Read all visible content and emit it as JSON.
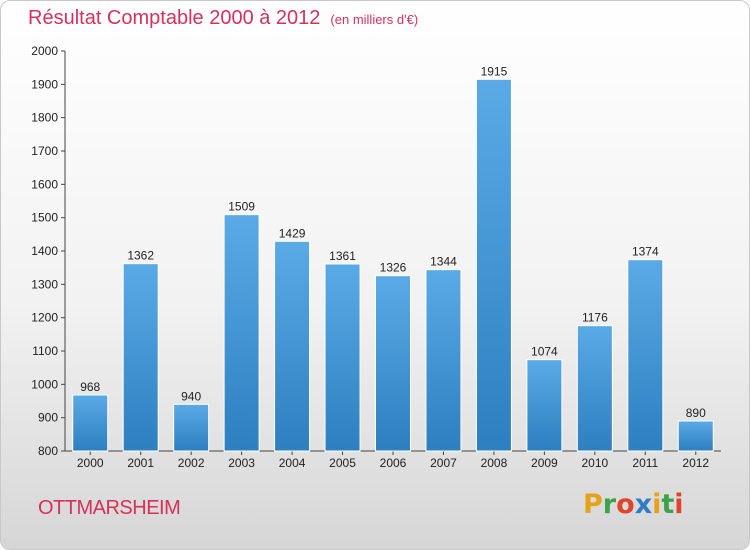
{
  "header": {
    "title": "Résultat Comptable 2000 à 2012",
    "subtitle": "(en milliers d'€)"
  },
  "footer": {
    "commune": "OTTMARSHEIM",
    "brand_letters": [
      "P",
      "r",
      "o",
      "x",
      "i",
      "t",
      "i"
    ],
    "brand_colors": [
      "#e8a21a",
      "#3aa34a",
      "#e0452c",
      "#2f7dc6",
      "#e8a21a",
      "#3aa34a",
      "#e0452c"
    ]
  },
  "colors": {
    "bar_top": "#5aaae6",
    "bar_bottom": "#2e7fc0",
    "title": "#d6305b"
  },
  "chart_data": {
    "type": "bar",
    "title": "Résultat Comptable 2000 à 2012",
    "subtitle": "(en milliers d'€)",
    "categories": [
      "2000",
      "2001",
      "2002",
      "2003",
      "2004",
      "2005",
      "2006",
      "2007",
      "2008",
      "2009",
      "2010",
      "2011",
      "2012"
    ],
    "values": [
      968,
      1362,
      940,
      1509,
      1429,
      1361,
      1326,
      1344,
      1915,
      1074,
      1176,
      1374,
      890
    ],
    "ylim": [
      800,
      2000
    ],
    "yticks": [
      800,
      900,
      1000,
      1100,
      1200,
      1300,
      1400,
      1500,
      1600,
      1700,
      1800,
      1900,
      2000
    ],
    "grid": false,
    "data_labels": true
  }
}
